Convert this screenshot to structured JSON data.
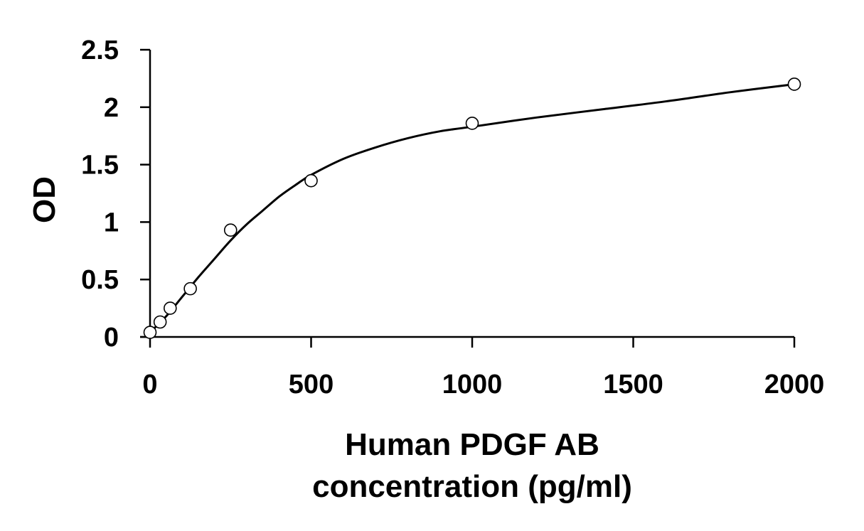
{
  "chart_data": {
    "type": "scatter",
    "xlabel_lines": [
      "Human PDGF AB",
      "concentration (pg/ml)"
    ],
    "ylabel": "OD",
    "xlim": [
      0,
      2000
    ],
    "ylim": [
      0,
      2.5
    ],
    "x_ticks": [
      0,
      500,
      1000,
      1500,
      2000
    ],
    "y_ticks": [
      0,
      0.5,
      1,
      1.5,
      2,
      2.5
    ],
    "x_tick_labels": [
      "0",
      "500",
      "1000",
      "1500",
      "2000"
    ],
    "y_tick_labels": [
      "0",
      "0.5",
      "1",
      "1.5",
      "2",
      "2.5"
    ],
    "grid": false,
    "legend": "none",
    "series": [
      {
        "marker": "open-circle",
        "color": "#000000",
        "points": [
          {
            "x": 0,
            "y": 0.04
          },
          {
            "x": 31.25,
            "y": 0.13
          },
          {
            "x": 62.5,
            "y": 0.25
          },
          {
            "x": 125,
            "y": 0.42
          },
          {
            "x": 250,
            "y": 0.93
          },
          {
            "x": 500,
            "y": 1.36
          },
          {
            "x": 1000,
            "y": 1.86
          },
          {
            "x": 2000,
            "y": 2.2
          }
        ]
      }
    ],
    "fit_curve": {
      "type": "four-parameter-logistic",
      "color": "#000000",
      "points": [
        {
          "x": 0,
          "y": 0.04
        },
        {
          "x": 50,
          "y": 0.18
        },
        {
          "x": 100,
          "y": 0.35
        },
        {
          "x": 150,
          "y": 0.52
        },
        {
          "x": 200,
          "y": 0.68
        },
        {
          "x": 250,
          "y": 0.84
        },
        {
          "x": 300,
          "y": 0.98
        },
        {
          "x": 350,
          "y": 1.1
        },
        {
          "x": 400,
          "y": 1.22
        },
        {
          "x": 450,
          "y": 1.32
        },
        {
          "x": 500,
          "y": 1.41
        },
        {
          "x": 600,
          "y": 1.55
        },
        {
          "x": 700,
          "y": 1.65
        },
        {
          "x": 800,
          "y": 1.73
        },
        {
          "x": 900,
          "y": 1.79
        },
        {
          "x": 1000,
          "y": 1.83
        },
        {
          "x": 1200,
          "y": 1.91
        },
        {
          "x": 1400,
          "y": 1.98
        },
        {
          "x": 1600,
          "y": 2.05
        },
        {
          "x": 1800,
          "y": 2.13
        },
        {
          "x": 2000,
          "y": 2.2
        }
      ]
    }
  }
}
